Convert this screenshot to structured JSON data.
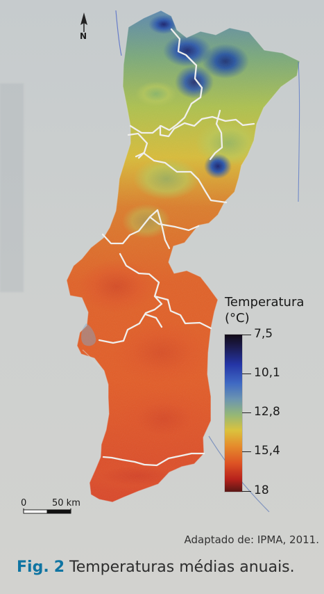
{
  "map": {
    "north_label": "N",
    "legend": {
      "title": "Temperatura",
      "unit": "(°C)",
      "ticks": [
        "7,5",
        "10,1",
        "12,8",
        "15,4",
        "18"
      ]
    },
    "scale": {
      "start": "0",
      "end": "50 km"
    }
  },
  "source": "Adaptado de: IPMA, 2011.",
  "caption": {
    "prefix": "Fig.",
    "number": "2",
    "text": "Temperaturas médias anuais."
  },
  "colors": {
    "cold": "#1c1b4f",
    "cool": "#3f69c3",
    "mild": "#94b777",
    "warm": "#dbc23d",
    "hot": "#dd5224",
    "very_hot": "#5a1715"
  }
}
